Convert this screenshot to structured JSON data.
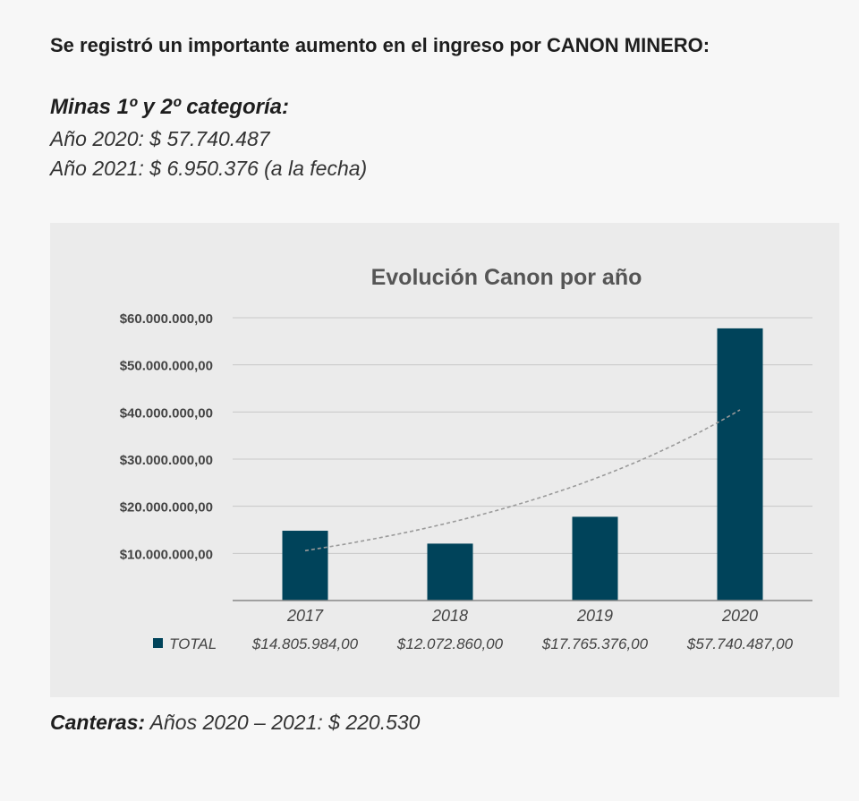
{
  "header": {
    "headline": "Se registró un importante aumento en el ingreso por CANON MINERO:"
  },
  "minas": {
    "title": "Minas 1º y 2º categoría:",
    "line_2020": "Año 2020: $ 57.740.487",
    "line_2021": "Año 2021: $ 6.950.376 (a la fecha)"
  },
  "footer": {
    "label": "Canteras:",
    "text": " Años 2020 – 2021: $ 220.530"
  },
  "colors": {
    "bar": "#00435a",
    "grid": "#c8c8c8",
    "trend": "#9a9a9a"
  },
  "chart_data": {
    "type": "bar",
    "title": "Evolución Canon por año",
    "categories": [
      "2017",
      "2018",
      "2019",
      "2020"
    ],
    "series": [
      {
        "name": "TOTAL",
        "values": [
          14805984,
          12072860,
          17765376,
          57740487
        ],
        "value_labels": [
          "$14.805.984,00",
          "$12.072.860,00",
          "$17.765.376,00",
          "$57.740.487,00"
        ]
      }
    ],
    "ylim": [
      0,
      60000000
    ],
    "yticks": [
      10000000,
      20000000,
      30000000,
      40000000,
      50000000,
      60000000
    ],
    "ytick_labels": [
      "$10.000.000,00",
      "$20.000.000,00",
      "$30.000.000,00",
      "$40.000.000,00",
      "$50.000.000,00",
      "$60.000.000,00"
    ],
    "grid": true,
    "trendline": "exponential",
    "legend": "data-table-below"
  }
}
